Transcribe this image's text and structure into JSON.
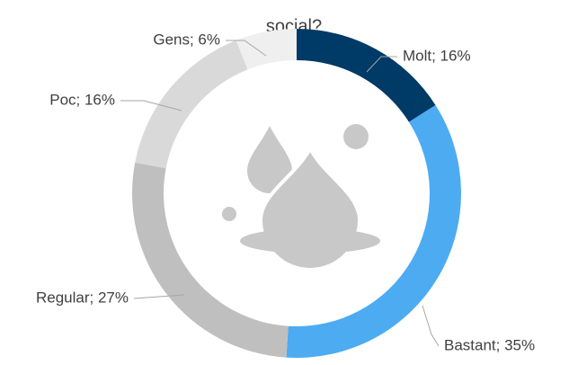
{
  "chart_data": {
    "type": "donut",
    "title": "social?",
    "categories": [
      "Molt",
      "Bastant",
      "Regular",
      "Poc",
      "Gens"
    ],
    "values": [
      16,
      35,
      27,
      16,
      6
    ],
    "value_labels": [
      "Molt; 16%",
      "Bastant; 35%",
      "Regular; 27%",
      "Poc; 16%",
      "Gens; 6%"
    ],
    "colors": [
      "#003a66",
      "#4dabf2",
      "#bfbfbf",
      "#d9d9d9",
      "#efefef"
    ]
  }
}
